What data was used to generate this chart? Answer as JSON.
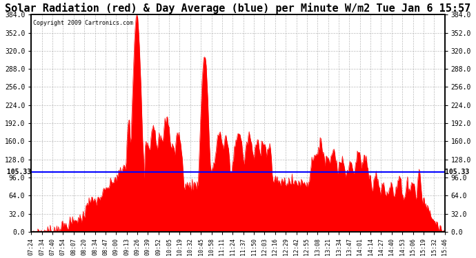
{
  "title": "Solar Radiation (red) & Day Average (blue) per Minute W/m2 Tue Jan 6 15:57",
  "copyright": "Copyright 2009 Cartronics.com",
  "avg_value": 105.33,
  "y_min": 0.0,
  "y_max": 384.0,
  "y_tick_interval": 32.0,
  "bar_color": "#FF0000",
  "line_color": "#0000FF",
  "background_color": "#FFFFFF",
  "grid_color": "#AAAAAA",
  "title_fontsize": 11.0,
  "x_tick_labels": [
    "07:24",
    "07:34",
    "07:40",
    "07:54",
    "08:07",
    "08:20",
    "08:34",
    "08:47",
    "09:00",
    "09:13",
    "09:26",
    "09:39",
    "09:52",
    "10:05",
    "10:19",
    "10:32",
    "10:45",
    "10:58",
    "11:11",
    "11:24",
    "11:37",
    "11:50",
    "12:03",
    "12:16",
    "12:29",
    "12:42",
    "12:55",
    "13:08",
    "13:21",
    "13:34",
    "13:47",
    "14:01",
    "14:14",
    "14:27",
    "14:40",
    "14:53",
    "15:06",
    "15:19",
    "15:32",
    "15:46"
  ]
}
